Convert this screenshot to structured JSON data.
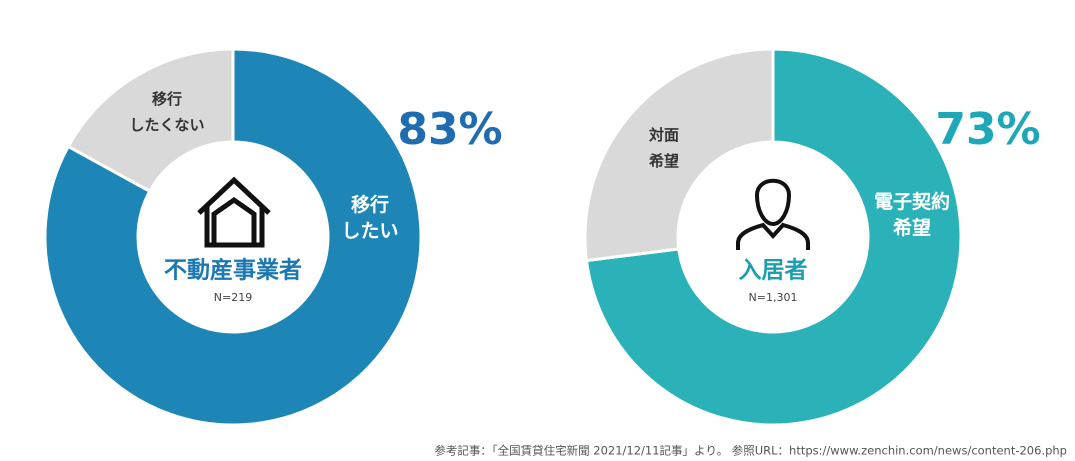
{
  "chart_data": [
    {
      "type": "donut",
      "title": "不動産事業者",
      "subtitle": "N=219",
      "categories": [
        "移行\nしたい",
        "移行\nしたくない"
      ],
      "values": [
        83,
        17
      ],
      "value_labels": [
        "83%",
        null
      ],
      "colors": [
        "#1d86b6",
        "#d9d9d9"
      ],
      "title_color": "#1b78b0",
      "value_label_color": "#1f6db0"
    },
    {
      "type": "donut",
      "title": "入居者",
      "subtitle": "N=1,301",
      "categories": [
        "電子契約\n希望",
        "対面\n希望"
      ],
      "values": [
        73,
        27
      ],
      "value_labels": [
        "73%",
        null
      ],
      "colors": [
        "#2bb2b9",
        "#d9d9d9"
      ],
      "title_color": "#1b9fb0",
      "value_label_color": "#1ea7b6"
    }
  ],
  "source": "参考記事：「全国賃貸住宅新聞 2021/12/11記事」より。 参照URL：https://www.zenchin.com/news/content-206.php"
}
